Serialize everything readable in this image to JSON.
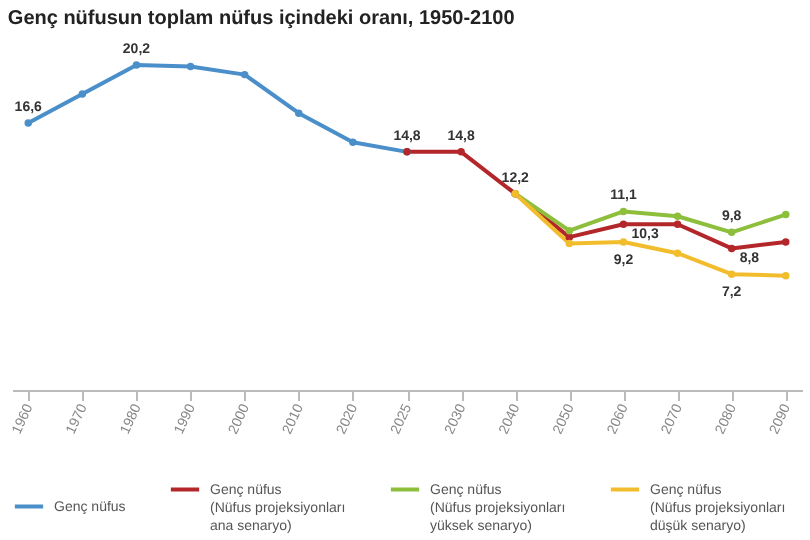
{
  "chart_data": {
    "type": "line",
    "title": "Genç nüfusun toplam nüfus içindeki oranı, 1950-2100",
    "categories": [
      "1960",
      "1970",
      "1980",
      "1990",
      "2000",
      "2010",
      "2020",
      "2025",
      "2030",
      "2040",
      "2050",
      "2060",
      "2070",
      "2080",
      "2090"
    ],
    "series": [
      {
        "name": "Genç nüfus",
        "color": "#4a8fc9",
        "values": [
          16.6,
          18.4,
          20.2,
          20.1,
          19.6,
          17.2,
          15.4,
          14.8,
          null,
          null,
          null,
          null,
          null,
          null,
          null
        ],
        "value_labels": [
          "16,6",
          null,
          "20,2",
          null,
          null,
          null,
          null,
          "14,8",
          null,
          null,
          null,
          null,
          null,
          null,
          null
        ]
      },
      {
        "name": "Genç nüfus\n(Nüfus projeksiyonları\nana senaryo)",
        "color": "#b3262a",
        "values": [
          null,
          null,
          null,
          null,
          null,
          null,
          null,
          14.8,
          14.8,
          12.2,
          9.5,
          10.3,
          10.3,
          8.8,
          9.2
        ],
        "value_labels": [
          null,
          null,
          null,
          null,
          null,
          null,
          null,
          null,
          "14,8",
          "12,2",
          null,
          "10,3",
          null,
          "8,8",
          null
        ]
      },
      {
        "name": "Genç nüfus\n(Nüfus projeksiyonları\nyüksek senaryo)",
        "color": "#8dbf3c",
        "values": [
          null,
          null,
          null,
          null,
          null,
          null,
          null,
          null,
          null,
          12.2,
          9.9,
          11.1,
          10.8,
          9.8,
          10.9
        ],
        "value_labels": [
          null,
          null,
          null,
          null,
          null,
          null,
          null,
          null,
          null,
          null,
          null,
          "11,1",
          null,
          "9,8",
          null
        ]
      },
      {
        "name": "Genç nüfus\n(Nüfus projeksiyonları\ndüşük senaryo)",
        "color": "#f2bd2c",
        "values": [
          null,
          null,
          null,
          null,
          null,
          null,
          null,
          null,
          null,
          12.2,
          9.1,
          9.2,
          8.5,
          7.2,
          7.1
        ],
        "value_labels": [
          null,
          null,
          null,
          null,
          null,
          null,
          null,
          null,
          null,
          null,
          null,
          "9,2",
          null,
          "7,2",
          null
        ]
      }
    ],
    "marker": "circle",
    "legend": "bottom",
    "grid": false,
    "tick_labels": "x"
  }
}
